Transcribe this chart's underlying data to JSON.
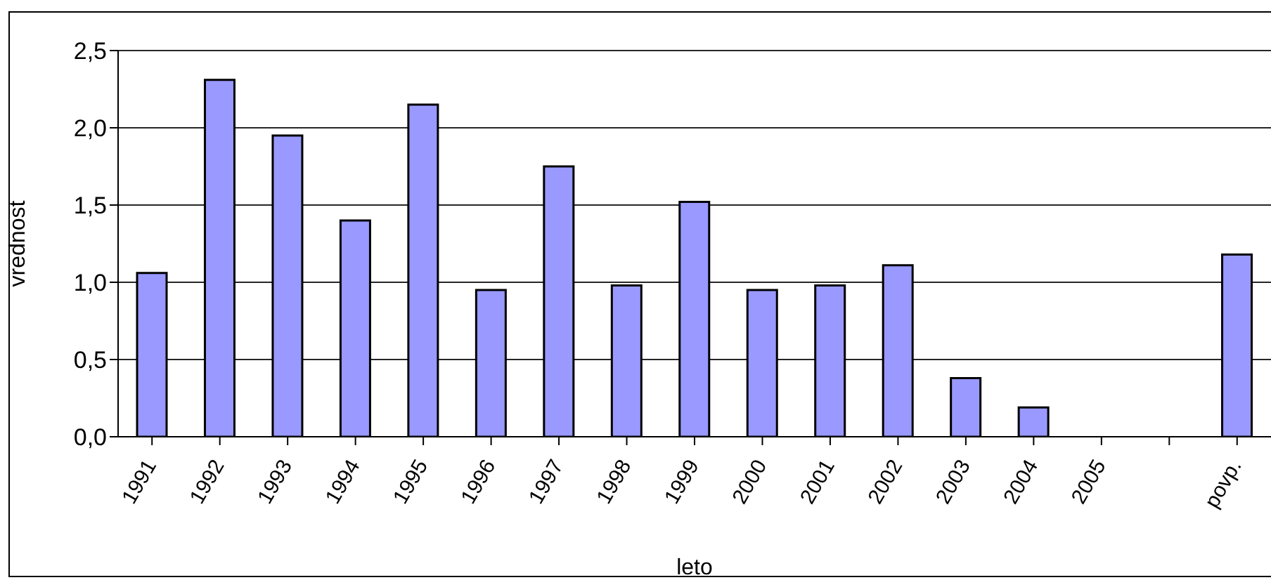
{
  "chart_data": {
    "type": "bar",
    "xlabel": "leto",
    "ylabel": "vrednost",
    "categories": [
      "1991",
      "1992",
      "1993",
      "1994",
      "1995",
      "1996",
      "1997",
      "1998",
      "1999",
      "2000",
      "2001",
      "2002",
      "2003",
      "2004",
      "2005",
      null,
      "povp."
    ],
    "values": [
      1.06,
      2.31,
      1.95,
      1.4,
      2.15,
      0.95,
      1.75,
      0.98,
      1.52,
      0.95,
      0.98,
      1.11,
      0.38,
      0.19,
      null,
      null,
      1.18
    ],
    "color": "#9999ff",
    "ylim": [
      0,
      2.5
    ],
    "yticks": [
      {
        "value": 0,
        "label": "0,0"
      },
      {
        "value": 0.5,
        "label": "0,5"
      },
      {
        "value": 1,
        "label": "1,0"
      },
      {
        "value": 1.5,
        "label": "1,5"
      },
      {
        "value": 2,
        "label": "2,0"
      },
      {
        "value": 2.5,
        "label": "2,5"
      }
    ],
    "grid": "y",
    "legend": false
  }
}
